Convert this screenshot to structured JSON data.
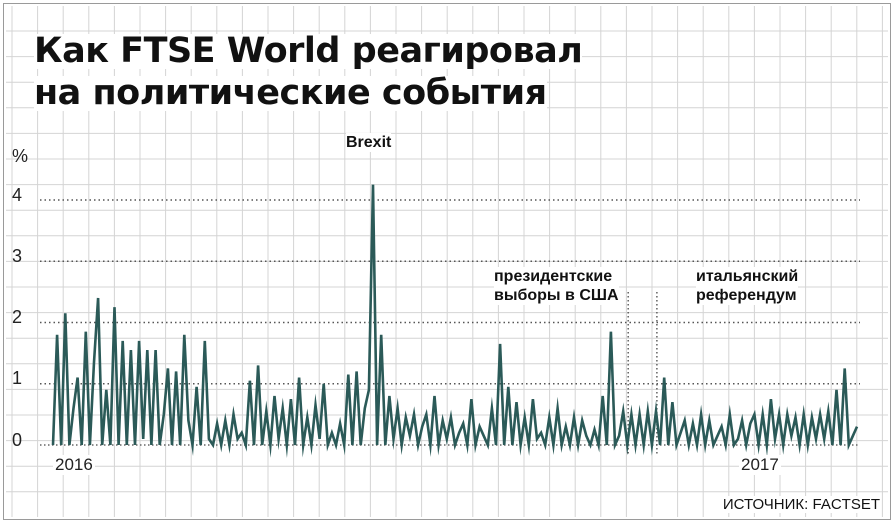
{
  "chart_data": {
    "type": "line",
    "title": "Как FTSE World реагировал на политические события",
    "title_lines": [
      "Как FTSE World реагировал",
      "на политические события"
    ],
    "ylabel": "%",
    "ylim": [
      0,
      4.5
    ],
    "yticks": [
      0,
      1,
      2,
      3,
      4
    ],
    "xlabels": [
      "2016",
      "2017"
    ],
    "grid": true,
    "color": "#2b5a58",
    "series": [
      {
        "values": [
          0,
          1.8,
          0,
          2.15,
          0,
          0.6,
          1.1,
          0,
          1.85,
          0,
          1.35,
          2.4,
          0,
          0.9,
          0,
          2.25,
          0,
          1.7,
          0,
          1.55,
          0,
          1.7,
          0.1,
          1.55,
          0,
          1.55,
          0,
          0.5,
          1.25,
          0,
          1.2,
          0,
          1.8,
          0.4,
          0,
          0.95,
          0,
          1.7,
          0.1,
          0,
          0.35,
          0,
          0.4,
          0,
          0.5,
          0.1,
          0.2,
          0,
          1.05,
          0,
          1.3,
          0,
          0.55,
          0,
          0.8,
          0.1,
          0.6,
          0,
          0.75,
          0,
          1.1,
          0,
          0.45,
          0,
          0.65,
          0.1,
          1.0,
          0,
          0.2,
          0,
          0.35,
          0,
          1.15,
          0,
          1.2,
          0,
          0.6,
          0.9,
          4.25,
          0,
          1.8,
          0,
          0.8,
          0.1,
          0.6,
          0,
          0.45,
          0.15,
          0.5,
          0,
          0.3,
          0.5,
          0,
          0.8,
          0,
          0.4,
          0.1,
          0.45,
          0,
          0.2,
          0.35,
          0,
          0.75,
          0,
          0.3,
          0.15,
          0,
          0.6,
          0,
          1.65,
          0,
          0.95,
          0,
          0.7,
          0,
          0.45,
          0,
          0.75,
          0.1,
          0.2,
          0,
          0.45,
          0,
          0.6,
          0,
          0.3,
          0,
          0.45,
          0,
          0.4,
          0.15,
          0,
          0.25,
          0,
          0.8,
          0,
          1.85,
          0,
          0.15,
          0.55,
          0,
          0.5,
          0,
          0.5,
          0,
          0.55,
          0,
          0.55,
          0,
          1.1,
          0,
          0.7,
          0,
          0.2,
          0.4,
          0,
          0.35,
          0,
          0.5,
          0,
          0.4,
          0,
          0.15,
          0.3,
          0,
          0.5,
          0,
          0.1,
          0.4,
          0,
          0.35,
          0.5,
          0,
          0.5,
          0,
          0.75,
          0.1,
          0.5,
          0,
          0.5,
          0.15,
          0.45,
          0,
          0.5,
          0,
          0.45,
          0.1,
          0.5,
          0.1,
          0.55,
          0,
          0.9,
          0,
          1.25,
          0,
          0.15,
          0.3
        ]
      }
    ],
    "annotations": [
      {
        "id": "brexit",
        "lines": [
          "Brexit"
        ],
        "index": 78
      },
      {
        "id": "us-election",
        "lines": [
          "президентские",
          "выборы в США"
        ],
        "index": 139
      },
      {
        "id": "italy-referendum",
        "lines": [
          "итальянский",
          "референдум"
        ],
        "index": 146
      }
    ],
    "source": "ИСТОЧНИК: FACTSET"
  }
}
